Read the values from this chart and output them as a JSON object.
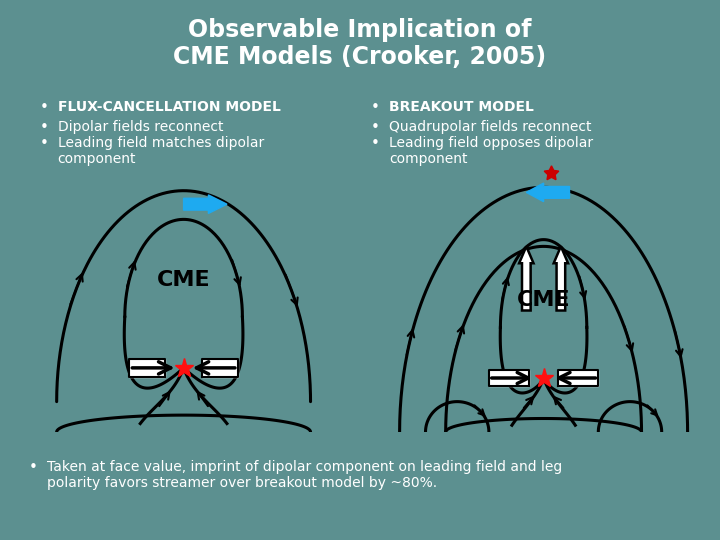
{
  "title_line1": "Observable Implication of",
  "title_line2": "CME Models (Crooker, 2005)",
  "title_fontsize": 17,
  "title_color": "#FFFFFF",
  "background_color": "#5C9090",
  "left_header": "FLUX-CANCELLATION MODEL",
  "left_bullets": [
    "Dipolar fields reconnect",
    "Leading field matches dipolar\ncomponent"
  ],
  "right_header": "BREAKOUT MODEL",
  "right_bullets": [
    "Quadrupolar fields reconnect",
    "Leading field opposes dipolar\ncomponent"
  ],
  "bottom_bullet": "Taken at face value, imprint of dipolar component on leading field and leg\npolarity favors streamer over breakout model by ~80%.",
  "bullet_fontsize": 10,
  "header_fontsize": 10,
  "text_color": "#FFFFFF",
  "diagram_bg": "#FFFFFF",
  "blue_arrow_color": "#1EAAF0",
  "star_color": "#FF1010",
  "crown_color": "#CC0000",
  "line_color": "#000000"
}
